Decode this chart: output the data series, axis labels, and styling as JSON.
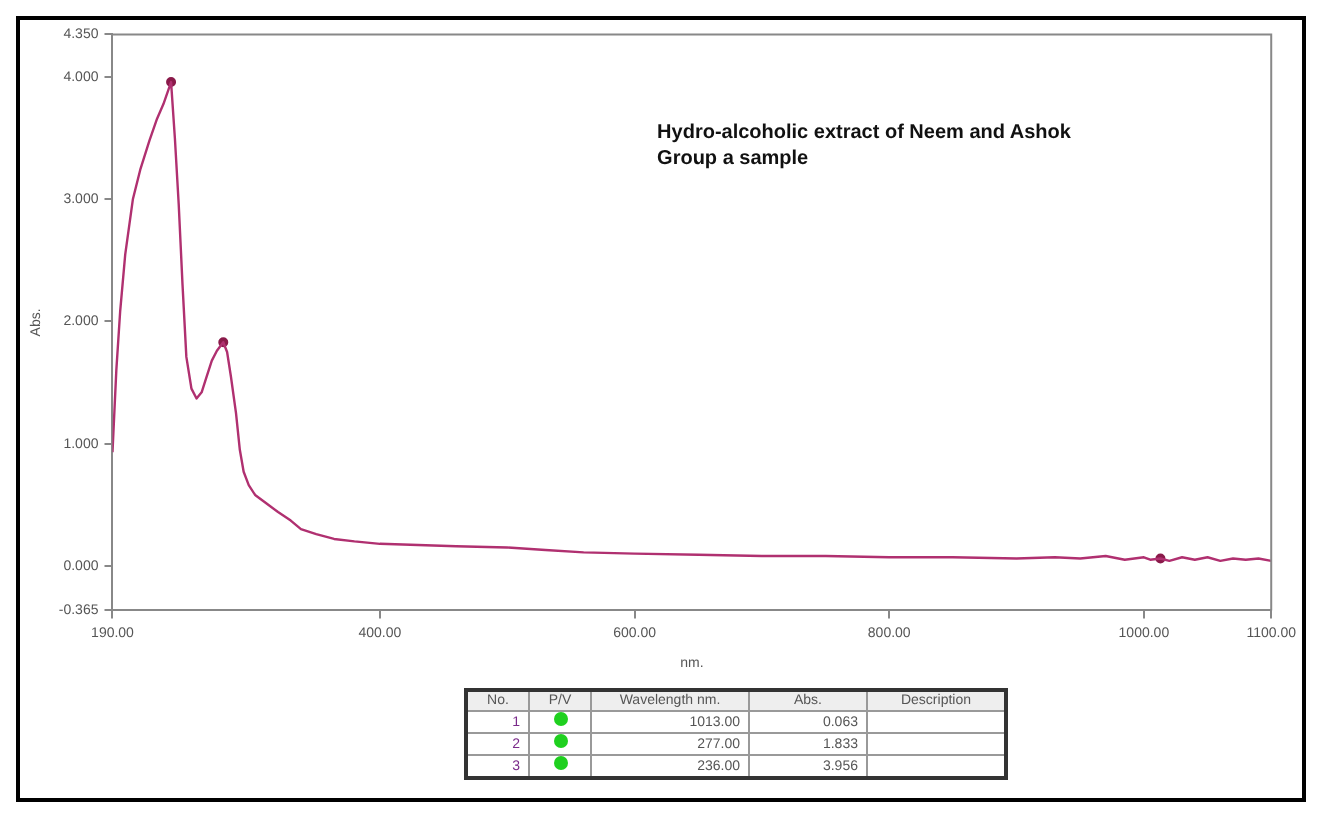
{
  "chart_data": [
    {
      "type": "line",
      "xlabel": "nm.",
      "ylabel": "Abs.",
      "annotations": [
        "Hydro-alcoholic extract of Neem and Ashok Group a sample"
      ],
      "series": [
        {
          "color": "#b03070",
          "marker": "none",
          "x": [
            190,
            193,
            196,
            200,
            206,
            212,
            219,
            225,
            230,
            236,
            239,
            242,
            245,
            248,
            252,
            256,
            260,
            264,
            268,
            272,
            277,
            280,
            283,
            287,
            290,
            293,
            297,
            302,
            311,
            320,
            330,
            338,
            350,
            364,
            380,
            400,
            430,
            460,
            500,
            530,
            560,
            600,
            650,
            700,
            750,
            800,
            850,
            900,
            930,
            950,
            970,
            985,
            1000,
            1005,
            1013,
            1020,
            1030,
            1040,
            1050,
            1060,
            1070,
            1080,
            1090,
            1100
          ],
          "values": [
            0.93,
            1.6,
            2.08,
            2.55,
            3.0,
            3.25,
            3.48,
            3.66,
            3.78,
            3.96,
            3.5,
            2.96,
            2.3,
            1.71,
            1.45,
            1.37,
            1.42,
            1.55,
            1.68,
            1.76,
            1.83,
            1.75,
            1.55,
            1.25,
            0.95,
            0.77,
            0.66,
            0.58,
            0.51,
            0.44,
            0.37,
            0.3,
            0.26,
            0.22,
            0.2,
            0.18,
            0.17,
            0.16,
            0.15,
            0.13,
            0.11,
            0.1,
            0.09,
            0.08,
            0.08,
            0.07,
            0.07,
            0.06,
            0.07,
            0.06,
            0.08,
            0.05,
            0.07,
            0.05,
            0.06,
            0.04,
            0.07,
            0.05,
            0.07,
            0.04,
            0.06,
            0.05,
            0.06,
            0.04
          ]
        },
        {
          "type": "scatter",
          "color": "#8a1a4a",
          "marker": "circle",
          "x": [
            1013,
            277,
            236
          ],
          "values": [
            0.06,
            1.83,
            3.96
          ]
        }
      ],
      "xlim": [
        190,
        1100
      ],
      "xticks": [
        {
          "value": 190,
          "label": "190.00"
        },
        {
          "value": 400,
          "label": "400.00"
        },
        {
          "value": 600,
          "label": "600.00"
        },
        {
          "value": 800,
          "label": "800.00"
        },
        {
          "value": 1000,
          "label": "1000.00"
        },
        {
          "value": 1100,
          "label": "1100.00"
        }
      ],
      "ylim": [
        -0.365,
        4.35
      ],
      "yticks": [
        {
          "value": -0.365,
          "label": "-0.365"
        },
        {
          "value": 0,
          "label": "0.000"
        },
        {
          "value": 1,
          "label": "1.000"
        },
        {
          "value": 2,
          "label": "2.000"
        },
        {
          "value": 3,
          "label": "3.000"
        },
        {
          "value": 4,
          "label": "4.000"
        },
        {
          "value": 4.35,
          "label": "4.350"
        }
      ],
      "grid": false,
      "legend": false,
      "line_style": "solid"
    },
    {
      "type": "other",
      "annotations": [
        "No.",
        "P/V",
        "Wavelength nm.",
        "Abs.",
        "Description",
        "1",
        "1013.00",
        "0.063",
        "2",
        "277.00",
        "1.833",
        "3",
        "236.00",
        "3.956"
      ]
    }
  ]
}
